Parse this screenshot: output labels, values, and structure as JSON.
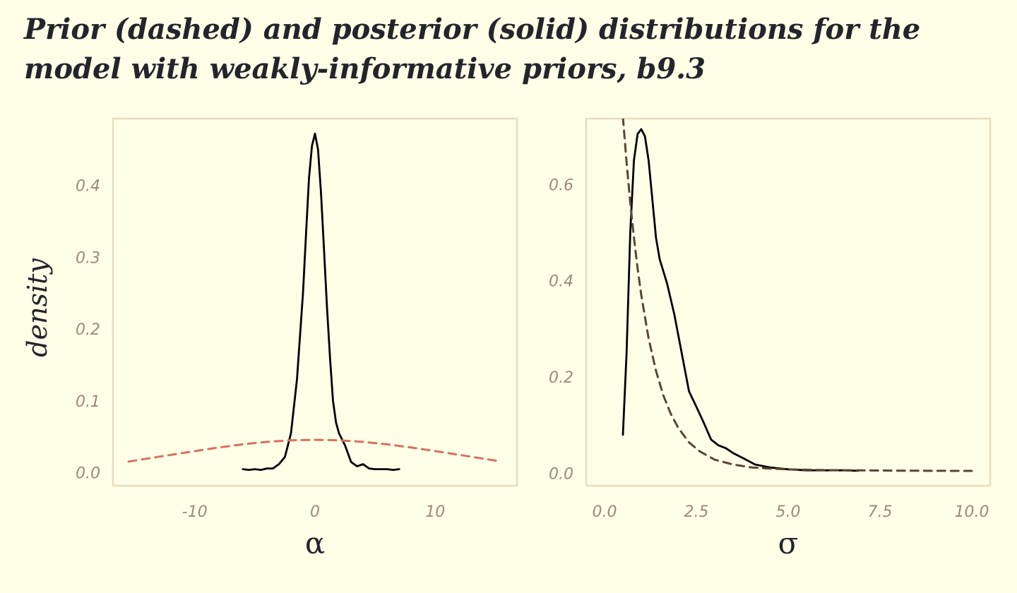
{
  "title": "Prior (dashed) and posterior (solid) distributions for the model with weakly-informative priors, b9.3",
  "colors": {
    "background": "#ffffe8",
    "panel_border": "#e8dcbc",
    "tick_text": "#9a8a78",
    "title_text": "#23252b",
    "posterior": "#000000",
    "prior_alpha": "#d87060",
    "prior_sigma": "#5a4535"
  },
  "chart_data": [
    {
      "type": "line",
      "panel": "alpha",
      "xlabel": "α",
      "ylabel": "density",
      "xlim": [
        -16.8,
        16.8
      ],
      "ylim": [
        -0.018,
        0.493
      ],
      "xticks": [
        -10,
        0,
        10
      ],
      "xtick_labels": [
        "-10",
        "0",
        "10"
      ],
      "yticks": [
        0.0,
        0.1,
        0.2,
        0.3,
        0.4
      ],
      "ytick_labels": [
        "0.0",
        "0.1",
        "0.2",
        "0.3",
        "0.4"
      ],
      "grid": false,
      "series": [
        {
          "role": "posterior",
          "style": "solid",
          "x": [
            -6.0,
            -5.5,
            -5.0,
            -4.5,
            -4.0,
            -3.5,
            -3.0,
            -2.5,
            -2.0,
            -1.5,
            -1.0,
            -0.75,
            -0.5,
            -0.25,
            0.0,
            0.25,
            0.5,
            0.75,
            1.0,
            1.25,
            1.5,
            1.75,
            2.0,
            2.5,
            3.0,
            3.5,
            4.0,
            4.5,
            5.0,
            5.5,
            6.0,
            6.5,
            7.0
          ],
          "y": [
            0.005,
            0.004,
            0.005,
            0.004,
            0.006,
            0.006,
            0.012,
            0.022,
            0.055,
            0.13,
            0.25,
            0.33,
            0.41,
            0.455,
            0.472,
            0.45,
            0.39,
            0.31,
            0.23,
            0.16,
            0.1,
            0.07,
            0.055,
            0.038,
            0.015,
            0.009,
            0.012,
            0.006,
            0.005,
            0.005,
            0.005,
            0.004,
            0.005
          ]
        },
        {
          "role": "prior",
          "style": "dashed",
          "x": [
            -15.5,
            -14,
            -12,
            -10,
            -8,
            -6,
            -4,
            -2,
            0,
            2,
            4,
            6,
            8,
            10,
            12,
            14,
            15.5
          ],
          "y": [
            0.0156,
            0.0196,
            0.0249,
            0.0302,
            0.0352,
            0.0396,
            0.043,
            0.0452,
            0.0459,
            0.0452,
            0.043,
            0.0396,
            0.0352,
            0.0302,
            0.0249,
            0.0196,
            0.0156
          ]
        }
      ]
    },
    {
      "type": "line",
      "panel": "sigma",
      "xlabel": "σ",
      "ylabel": "",
      "xlim": [
        -0.5,
        10.5
      ],
      "ylim": [
        -0.026,
        0.737
      ],
      "xticks": [
        0.0,
        2.5,
        5.0,
        7.5,
        10.0
      ],
      "xtick_labels": [
        "0.0",
        "2.5",
        "5.0",
        "7.5",
        "10.0"
      ],
      "yticks": [
        0.0,
        0.2,
        0.4,
        0.6
      ],
      "ytick_labels": [
        "0.0",
        "0.2",
        "0.4",
        "0.6"
      ],
      "grid": false,
      "series": [
        {
          "role": "posterior",
          "style": "solid",
          "x": [
            0.5,
            0.6,
            0.7,
            0.8,
            0.9,
            1.0,
            1.1,
            1.2,
            1.3,
            1.4,
            1.5,
            1.7,
            1.9,
            2.1,
            2.3,
            2.5,
            2.7,
            2.9,
            3.1,
            3.3,
            3.5,
            3.8,
            4.1,
            4.5,
            5.0,
            5.5,
            6.0,
            6.5,
            6.9
          ],
          "y": [
            0.08,
            0.25,
            0.5,
            0.65,
            0.705,
            0.715,
            0.7,
            0.65,
            0.57,
            0.49,
            0.445,
            0.395,
            0.33,
            0.25,
            0.17,
            0.138,
            0.105,
            0.07,
            0.058,
            0.052,
            0.042,
            0.03,
            0.018,
            0.012,
            0.008,
            0.006,
            0.006,
            0.006,
            0.005
          ]
        },
        {
          "role": "prior",
          "style": "dashed",
          "x": [
            0.5,
            0.6,
            0.7,
            0.8,
            0.9,
            1.0,
            1.2,
            1.4,
            1.6,
            1.8,
            2.0,
            2.3,
            2.6,
            3.0,
            3.5,
            4.0,
            4.5,
            5.0,
            6.0,
            7.0,
            8.0,
            9.0,
            10.0
          ],
          "y": [
            0.74,
            0.646,
            0.562,
            0.49,
            0.426,
            0.37,
            0.28,
            0.213,
            0.162,
            0.124,
            0.095,
            0.064,
            0.045,
            0.028,
            0.018,
            0.012,
            0.0095,
            0.008,
            0.0065,
            0.0058,
            0.0052,
            0.005,
            0.0048
          ]
        }
      ]
    }
  ]
}
